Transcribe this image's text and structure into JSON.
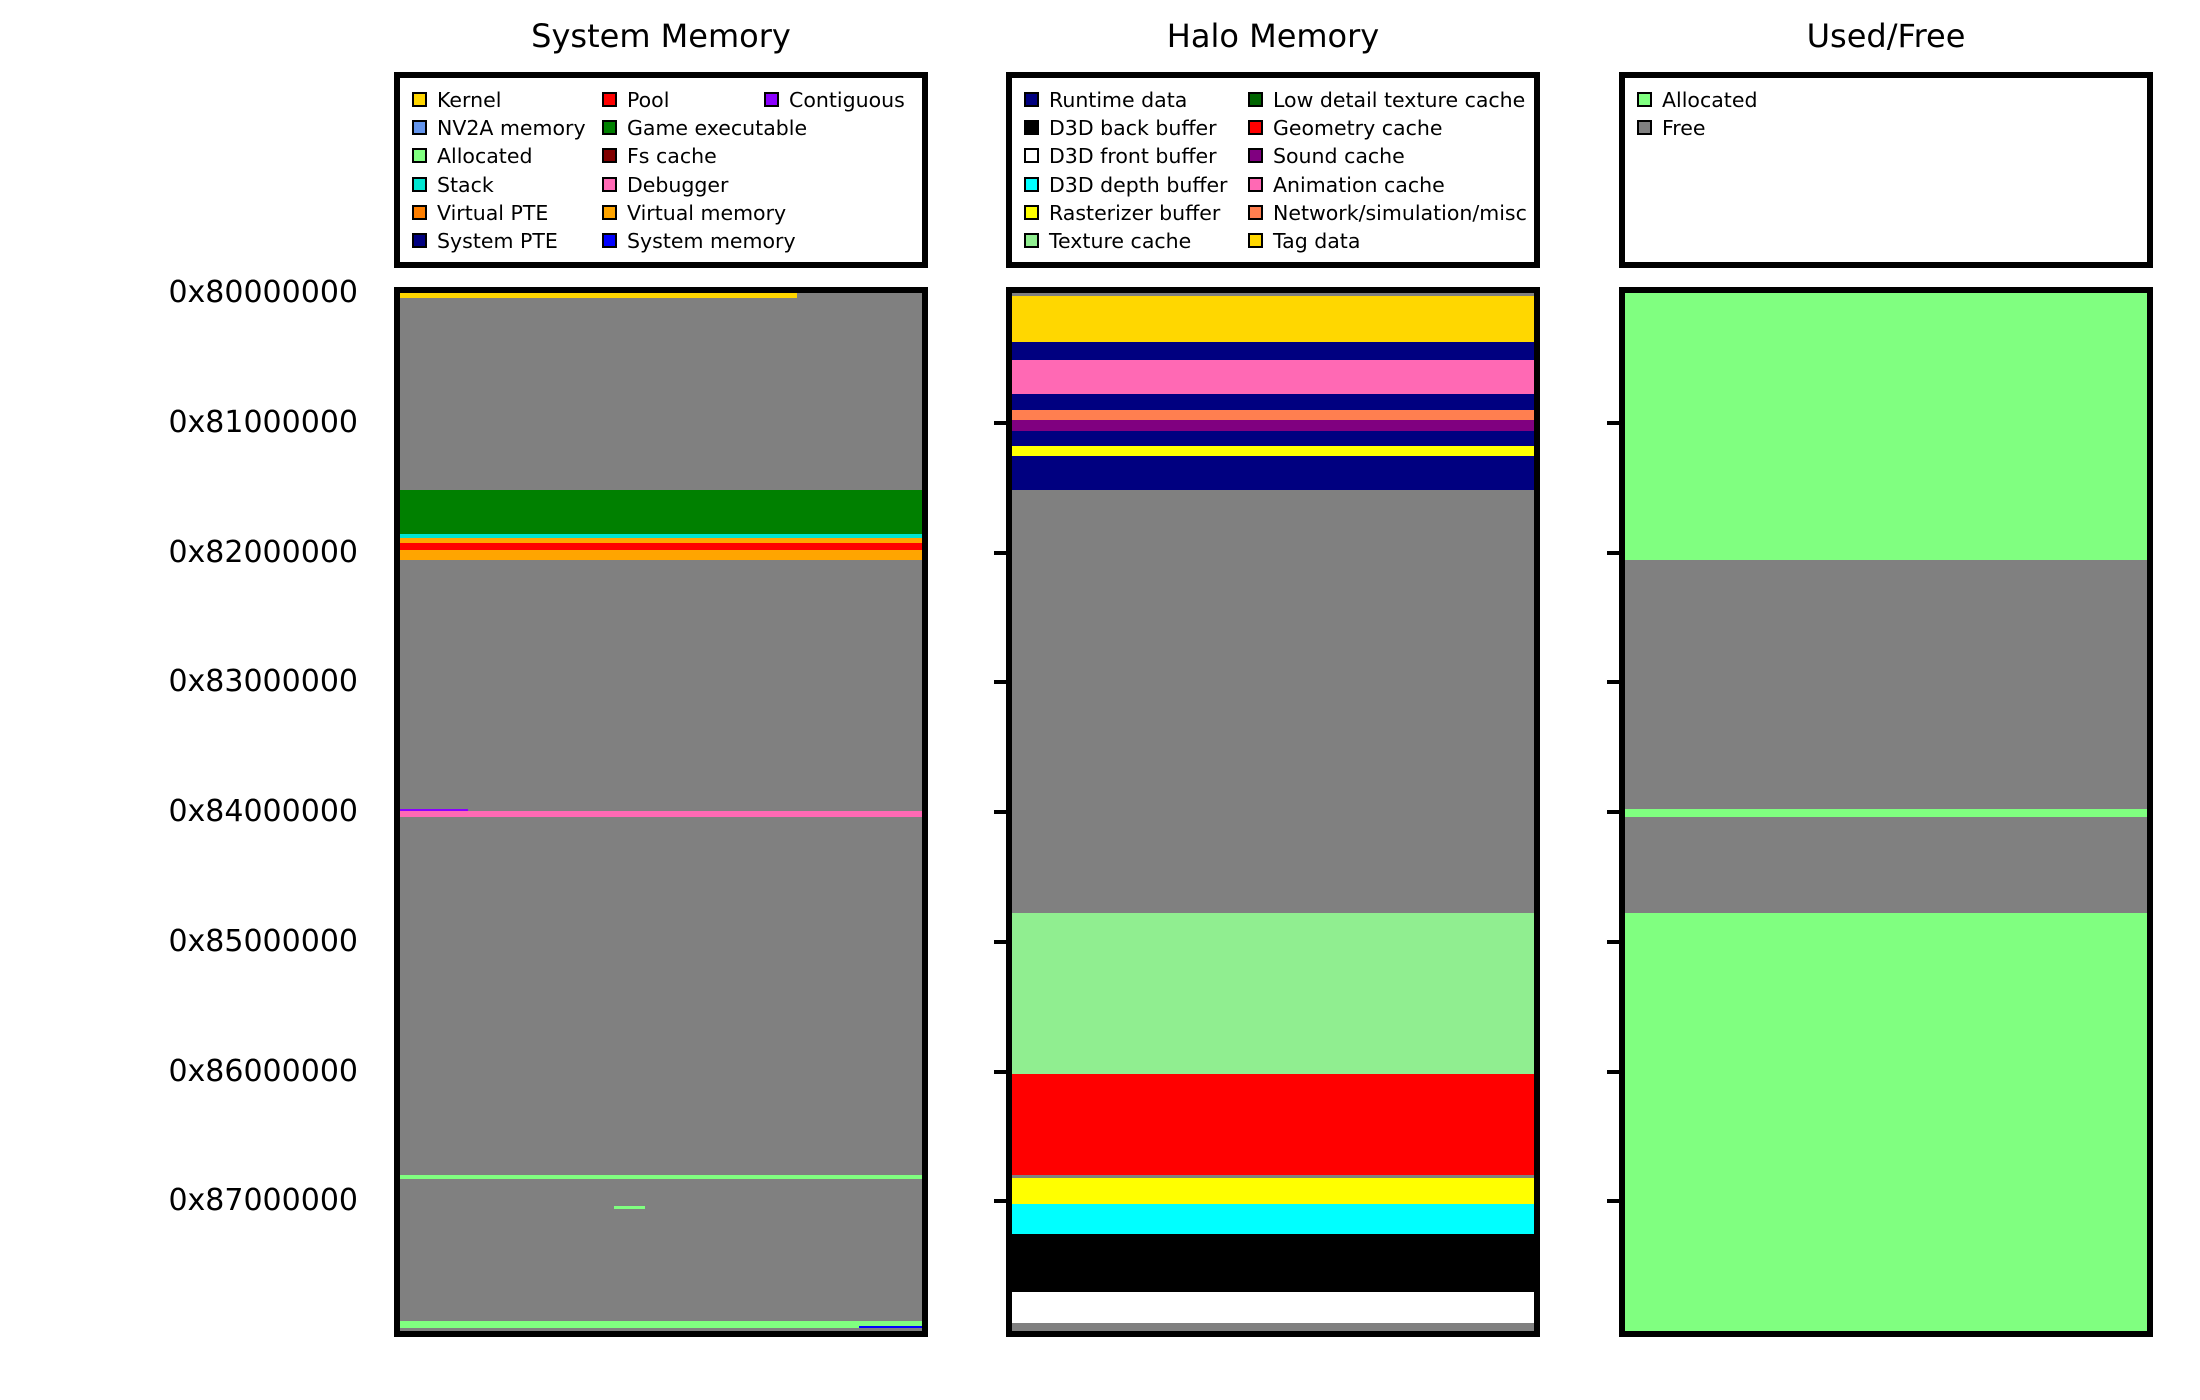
{
  "chart_data": [
    {
      "type": "heatmap",
      "title": "System Memory",
      "legend": [
        {
          "label": "Kernel",
          "color": "#FFD600"
        },
        {
          "label": "NV2A memory",
          "color": "#6495ED"
        },
        {
          "label": "Allocated",
          "color": "#80FF80"
        },
        {
          "label": "Stack",
          "color": "#00E5D0"
        },
        {
          "label": "Virtual PTE",
          "color": "#FF7F00"
        },
        {
          "label": "System PTE",
          "color": "#000080"
        },
        {
          "label": "Pool",
          "color": "#FF0000"
        },
        {
          "label": "Game executable",
          "color": "#008000"
        },
        {
          "label": "Fs cache",
          "color": "#800000"
        },
        {
          "label": "Debugger",
          "color": "#FF69B4"
        },
        {
          "label": "Virtual memory",
          "color": "#FFA500"
        },
        {
          "label": "System memory",
          "color": "#0000FF"
        },
        {
          "label": "Contiguous",
          "color": "#8B00FF"
        }
      ],
      "y_ticks": [
        "0x80000000",
        "0x81000000",
        "0x82000000",
        "0x83000000",
        "0x84000000",
        "0x85000000",
        "0x86000000",
        "0x87000000"
      ],
      "y_range": [
        "0x80000000",
        "0x88000000"
      ],
      "background_color": "#808080",
      "regions": [
        {
          "name": "Kernel",
          "color": "#FFD600",
          "start": 0.0,
          "end": 0.035,
          "x0": 0.0,
          "x1": 0.76
        },
        {
          "name": "Game executable",
          "color": "#008000",
          "start": 1.52,
          "end": 1.86
        },
        {
          "name": "Stack",
          "color": "#00E5D0",
          "start": 1.86,
          "end": 1.89
        },
        {
          "name": "Virtual memory",
          "color": "#FFA500",
          "start": 1.89,
          "end": 1.93
        },
        {
          "name": "Pool",
          "color": "#FF0000",
          "start": 1.93,
          "end": 1.98
        },
        {
          "name": "Virtual memory",
          "color": "#FFA500",
          "start": 1.98,
          "end": 2.06
        },
        {
          "name": "Contiguous",
          "color": "#8B00FF",
          "start": 3.98,
          "end": 4.01,
          "x0": 0.0,
          "x1": 0.13
        },
        {
          "name": "Debugger",
          "color": "#FF69B4",
          "start": 3.99,
          "end": 4.04
        },
        {
          "name": "Allocated",
          "color": "#80FF80",
          "start": 6.8,
          "end": 6.83
        },
        {
          "name": "Allocated",
          "color": "#80FF80",
          "start": 7.04,
          "end": 7.06,
          "x0": 0.41,
          "x1": 0.47
        },
        {
          "name": "Allocated",
          "color": "#80FF80",
          "start": 7.92,
          "end": 7.98
        },
        {
          "name": "System memory",
          "color": "#0000FF",
          "start": 7.96,
          "end": 7.98,
          "x0": 0.88,
          "x1": 1.0
        }
      ]
    },
    {
      "type": "heatmap",
      "title": "Halo Memory",
      "legend": [
        {
          "label": "Runtime data",
          "color": "#000080"
        },
        {
          "label": "D3D back buffer",
          "color": "#000000"
        },
        {
          "label": "D3D front buffer",
          "color": "#FFFFFF"
        },
        {
          "label": "D3D depth buffer",
          "color": "#00FFFF"
        },
        {
          "label": "Rasterizer buffer",
          "color": "#FFFF00"
        },
        {
          "label": "Texture cache",
          "color": "#90EE90"
        },
        {
          "label": "Low detail texture cache",
          "color": "#006400"
        },
        {
          "label": "Geometry cache",
          "color": "#FF0000"
        },
        {
          "label": "Sound cache",
          "color": "#800080"
        },
        {
          "label": "Animation cache",
          "color": "#FF69B4"
        },
        {
          "label": "Network/simulation/misc",
          "color": "#FF7F50"
        },
        {
          "label": "Tag data",
          "color": "#FFD700"
        }
      ],
      "y_range": [
        "0x80000000",
        "0x88000000"
      ],
      "background_color": "#808080",
      "regions": [
        {
          "name": "Tag data",
          "color": "#FFD700",
          "start": 0.02,
          "end": 0.4
        },
        {
          "name": "Runtime data",
          "color": "#000080",
          "start": 0.38,
          "end": 0.52
        },
        {
          "name": "Animation cache",
          "color": "#FF69B4",
          "start": 0.52,
          "end": 0.78
        },
        {
          "name": "Runtime data",
          "color": "#000080",
          "start": 0.78,
          "end": 0.9
        },
        {
          "name": "Network/simulation/misc",
          "color": "#FF7F50",
          "start": 0.9,
          "end": 0.98
        },
        {
          "name": "Sound cache",
          "color": "#800080",
          "start": 0.98,
          "end": 1.06
        },
        {
          "name": "Runtime data",
          "color": "#000080",
          "start": 1.06,
          "end": 1.18
        },
        {
          "name": "Rasterizer buffer",
          "color": "#FFFF00",
          "start": 1.18,
          "end": 1.26
        },
        {
          "name": "Runtime data",
          "color": "#000080",
          "start": 1.26,
          "end": 1.52
        },
        {
          "name": "Texture cache",
          "color": "#90EE90",
          "start": 4.78,
          "end": 6.02
        },
        {
          "name": "Geometry cache",
          "color": "#FF0000",
          "start": 6.02,
          "end": 6.8
        },
        {
          "name": "Rasterizer buffer",
          "color": "#FFFF00",
          "start": 6.82,
          "end": 7.02
        },
        {
          "name": "D3D depth buffer",
          "color": "#00FFFF",
          "start": 7.02,
          "end": 7.25
        },
        {
          "name": "D3D back buffer",
          "color": "#000000",
          "start": 7.25,
          "end": 7.7
        },
        {
          "name": "D3D front buffer",
          "color": "#FFFFFF",
          "start": 7.7,
          "end": 7.94
        }
      ]
    },
    {
      "type": "heatmap",
      "title": "Used/Free",
      "legend": [
        {
          "label": "Allocated",
          "color": "#80FF80"
        },
        {
          "label": "Free",
          "color": "#808080"
        }
      ],
      "y_range": [
        "0x80000000",
        "0x88000000"
      ],
      "background_color": "#808080",
      "regions": [
        {
          "name": "Allocated",
          "color": "#80FF80",
          "start": 0.0,
          "end": 2.06
        },
        {
          "name": "Allocated",
          "color": "#80FF80",
          "start": 3.98,
          "end": 4.04
        },
        {
          "name": "Allocated",
          "color": "#80FF80",
          "start": 4.78,
          "end": 8.0
        }
      ]
    }
  ]
}
